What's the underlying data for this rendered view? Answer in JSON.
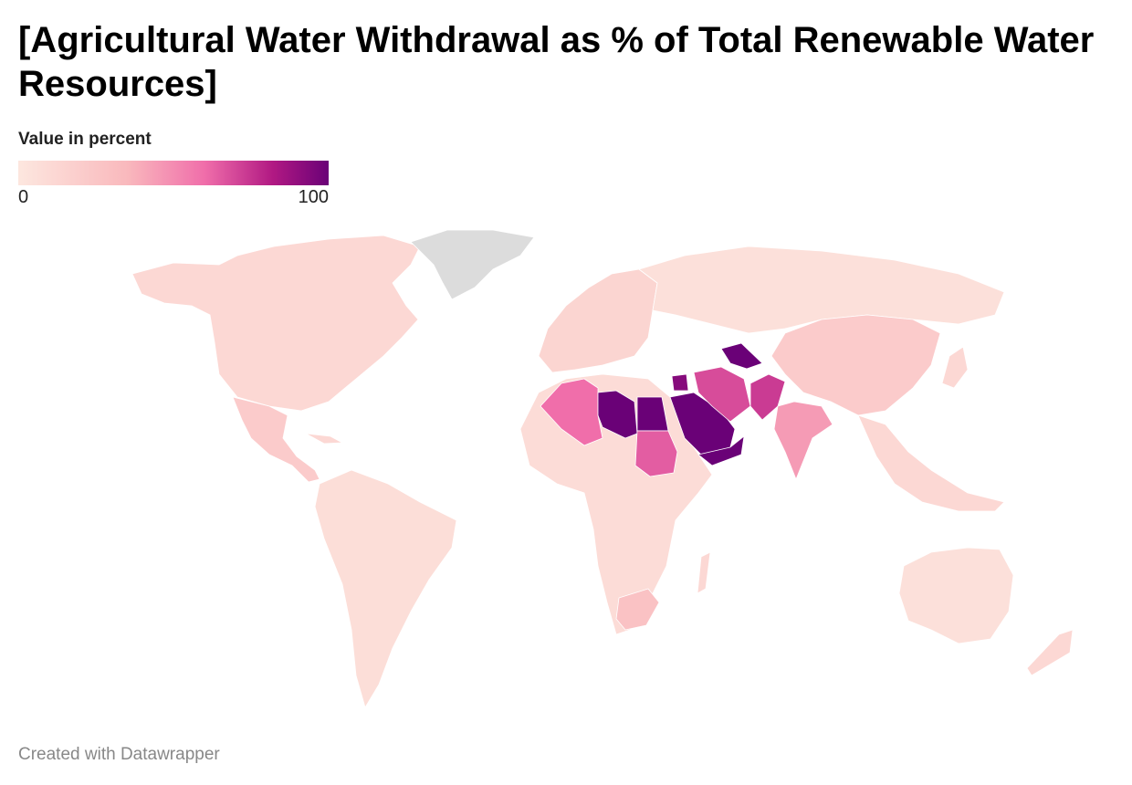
{
  "header": {
    "title": "[Agricultural Water Withdrawal as % of Total Renewable Water Resources]"
  },
  "legend": {
    "title": "Value in percent",
    "min_label": "0",
    "max_label": "100",
    "colors": [
      "#fde7df",
      "#f9b9bd",
      "#f06eaa",
      "#b11983",
      "#6a0177"
    ]
  },
  "map": {
    "type": "choropleth",
    "projection": "world",
    "no_data_color": "#dcdcdc",
    "regions": [
      {
        "name": "North America",
        "value": 8
      },
      {
        "name": "Mexico",
        "value": 15
      },
      {
        "name": "South America",
        "value": 5
      },
      {
        "name": "Europe",
        "value": 10
      },
      {
        "name": "Russia",
        "value": 4
      },
      {
        "name": "Africa",
        "value": 6
      },
      {
        "name": "Algeria",
        "value": 50
      },
      {
        "name": "Libya",
        "value": 100
      },
      {
        "name": "Egypt",
        "value": 100
      },
      {
        "name": "Sudan",
        "value": 55
      },
      {
        "name": "Saudi Arabia",
        "value": 100
      },
      {
        "name": "Yemen",
        "value": 100
      },
      {
        "name": "Iran",
        "value": 60
      },
      {
        "name": "Pakistan",
        "value": 65
      },
      {
        "name": "Uzbekistan",
        "value": 100
      },
      {
        "name": "Syria",
        "value": 90
      },
      {
        "name": "India",
        "value": 35
      },
      {
        "name": "China",
        "value": 15
      },
      {
        "name": "South Africa",
        "value": 20
      },
      {
        "name": "Australia",
        "value": 4
      },
      {
        "name": "Greenland",
        "value": null
      }
    ]
  },
  "footer": {
    "credit": "Created with Datawrapper"
  }
}
